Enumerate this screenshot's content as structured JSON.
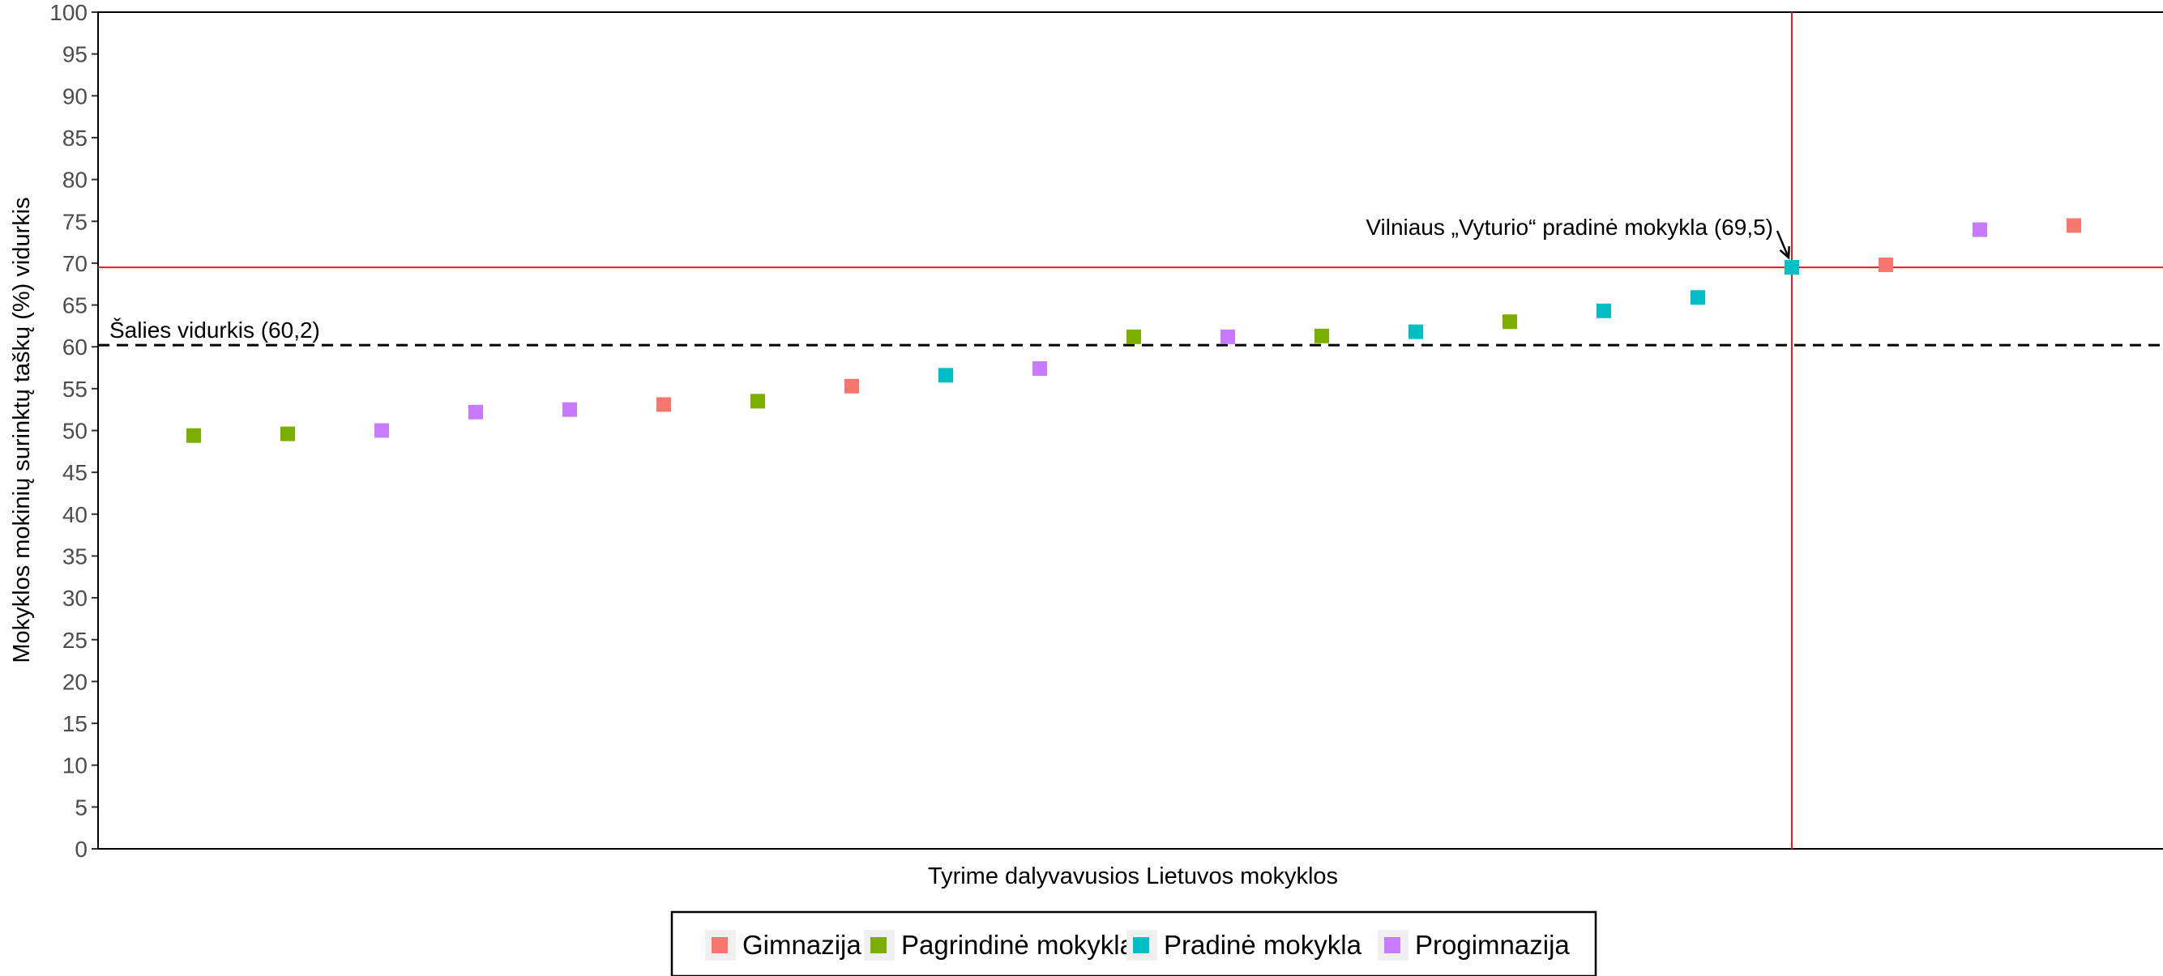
{
  "chart_data": {
    "type": "scatter",
    "xlabel": "Tyrime dalyvavusios Lietuvos mokyklos",
    "ylabel": "Mokyklos mokinių surinktų taškų (%) vidurkis",
    "ylim": [
      0,
      100
    ],
    "yticks": [
      0,
      5,
      10,
      15,
      20,
      25,
      30,
      35,
      40,
      45,
      50,
      55,
      60,
      65,
      70,
      75,
      80,
      85,
      90,
      95,
      100
    ],
    "grid": false,
    "legend_position": "bottom",
    "reference_lines": {
      "national_average": {
        "value": 60.2,
        "label": "Šalies vidurkis (60,2)",
        "style": "dashed",
        "color": "#000000"
      },
      "highlight_school": {
        "index": 18,
        "value": 69.5,
        "label": "Vilniaus „Vyturio“ pradinė mokykla (69,5)",
        "color": "#e41a1c"
      }
    },
    "legend": [
      {
        "name": "Gimnazija",
        "color": "#F8766D"
      },
      {
        "name": "Pagrindinė mokykla",
        "color": "#7CAE00"
      },
      {
        "name": "Pradinė mokykla",
        "color": "#00BFC4"
      },
      {
        "name": "Progimnazija",
        "color": "#C77CFF"
      }
    ],
    "points": [
      {
        "x": 1,
        "y": 49.4,
        "type": "Pagrindinė mokykla"
      },
      {
        "x": 2,
        "y": 49.6,
        "type": "Pagrindinė mokykla"
      },
      {
        "x": 3,
        "y": 50.0,
        "type": "Progimnazija"
      },
      {
        "x": 4,
        "y": 52.2,
        "type": "Progimnazija"
      },
      {
        "x": 5,
        "y": 52.5,
        "type": "Progimnazija"
      },
      {
        "x": 6,
        "y": 53.1,
        "type": "Gimnazija"
      },
      {
        "x": 7,
        "y": 53.5,
        "type": "Pagrindinė mokykla"
      },
      {
        "x": 8,
        "y": 55.3,
        "type": "Gimnazija"
      },
      {
        "x": 9,
        "y": 56.6,
        "type": "Pradinė mokykla"
      },
      {
        "x": 10,
        "y": 57.4,
        "type": "Progimnazija"
      },
      {
        "x": 11,
        "y": 61.2,
        "type": "Pagrindinė mokykla"
      },
      {
        "x": 12,
        "y": 61.2,
        "type": "Progimnazija"
      },
      {
        "x": 13,
        "y": 61.3,
        "type": "Pagrindinė mokykla"
      },
      {
        "x": 14,
        "y": 61.8,
        "type": "Pradinė mokykla"
      },
      {
        "x": 15,
        "y": 63.0,
        "type": "Pagrindinė mokykla"
      },
      {
        "x": 16,
        "y": 64.3,
        "type": "Pradinė mokykla"
      },
      {
        "x": 17,
        "y": 65.9,
        "type": "Pradinė mokykla"
      },
      {
        "x": 18,
        "y": 69.5,
        "type": "Pradinė mokykla"
      },
      {
        "x": 19,
        "y": 69.8,
        "type": "Gimnazija"
      },
      {
        "x": 20,
        "y": 74.0,
        "type": "Progimnazija"
      },
      {
        "x": 21,
        "y": 74.5,
        "type": "Gimnazija"
      }
    ]
  }
}
